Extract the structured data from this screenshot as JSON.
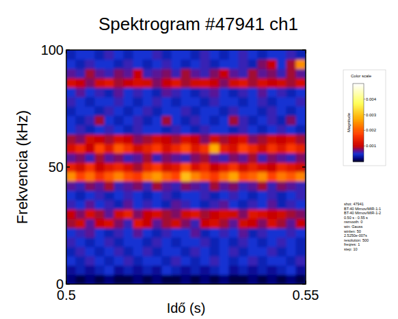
{
  "chart_data": {
    "type": "heatmap",
    "title": "Spektrogram #47941 ch1",
    "xlabel": "Idő (s)",
    "ylabel": "Frekvencia (kHz)",
    "xlim": [
      0.5,
      0.55
    ],
    "ylim": [
      0,
      100
    ],
    "xticks": [
      0.5,
      0.55
    ],
    "yticks": [
      0,
      50,
      100
    ],
    "x": [
      0.501,
      0.503,
      0.505,
      0.507,
      0.509,
      0.511,
      0.513,
      0.515,
      0.517,
      0.519,
      0.521,
      0.523,
      0.525,
      0.527,
      0.529,
      0.531,
      0.533,
      0.535,
      0.537,
      0.539,
      0.541,
      0.543,
      0.545,
      0.547,
      0.549
    ],
    "y": [
      2,
      6,
      10,
      14,
      18,
      22,
      26,
      30,
      34,
      38,
      42,
      46,
      50,
      54,
      58,
      62,
      66,
      70,
      74,
      78,
      82,
      86,
      90,
      94,
      98
    ],
    "cells": [
      [
        0.0002,
        0.0001,
        0.0002,
        0.0001,
        0.0002,
        0.0001,
        0.0001,
        0.0002,
        0.0001,
        0.0002,
        0.0001,
        0.0001,
        0.0002,
        0.0001,
        0.0002,
        0.0001,
        0.0002,
        0.0001,
        0.0001,
        0.0002,
        0.0001,
        0.0002,
        0.0001,
        0.0002,
        0.0001
      ],
      [
        0.0003,
        0.0004,
        0.0003,
        0.0004,
        0.0005,
        0.0003,
        0.0004,
        0.0003,
        0.0004,
        0.0003,
        0.0005,
        0.0004,
        0.0003,
        0.0004,
        0.0003,
        0.0004,
        0.0005,
        0.0003,
        0.0004,
        0.0003,
        0.0004,
        0.0003,
        0.0004,
        0.0005,
        0.0003
      ],
      [
        0.0005,
        0.0004,
        0.0006,
        0.0005,
        0.0004,
        0.0005,
        0.0006,
        0.0004,
        0.0005,
        0.0005,
        0.0004,
        0.0006,
        0.0005,
        0.0004,
        0.0005,
        0.0006,
        0.0005,
        0.0004,
        0.0005,
        0.0006,
        0.0004,
        0.0005,
        0.0005,
        0.0004,
        0.0006
      ],
      [
        0.0004,
        0.0006,
        0.0005,
        0.0004,
        0.0005,
        0.0006,
        0.0004,
        0.0005,
        0.0006,
        0.0004,
        0.0005,
        0.0005,
        0.0004,
        0.0006,
        0.0005,
        0.0004,
        0.0005,
        0.0006,
        0.0004,
        0.0005,
        0.0005,
        0.0006,
        0.0004,
        0.0005,
        0.0004
      ],
      [
        0.0006,
        0.0005,
        0.0004,
        0.0005,
        0.0006,
        0.0004,
        0.0005,
        0.0005,
        0.0004,
        0.0006,
        0.0005,
        0.0004,
        0.0005,
        0.0005,
        0.0006,
        0.0004,
        0.0005,
        0.0004,
        0.0006,
        0.0005,
        0.0004,
        0.0005,
        0.0006,
        0.0005,
        0.0004
      ],
      [
        0.0005,
        0.0006,
        0.0007,
        0.0005,
        0.0004,
        0.0006,
        0.0005,
        0.0007,
        0.0005,
        0.0004,
        0.0006,
        0.0005,
        0.0005,
        0.0007,
        0.0004,
        0.0005,
        0.0006,
        0.0005,
        0.0007,
        0.0004,
        0.0006,
        0.0005,
        0.0005,
        0.0006,
        0.0005
      ],
      [
        0.0009,
        0.0011,
        0.0007,
        0.001,
        0.0012,
        0.0008,
        0.0006,
        0.0013,
        0.001,
        0.0007,
        0.0009,
        0.0011,
        0.0008,
        0.0006,
        0.001,
        0.0012,
        0.0009,
        0.0007,
        0.0011,
        0.001,
        0.0008,
        0.0012,
        0.0009,
        0.0007,
        0.001
      ],
      [
        0.001,
        0.0008,
        0.0012,
        0.0009,
        0.0007,
        0.0011,
        0.0014,
        0.0008,
        0.001,
        0.0012,
        0.0009,
        0.0008,
        0.0011,
        0.0013,
        0.0009,
        0.001,
        0.0012,
        0.0011,
        0.0008,
        0.0013,
        0.0012,
        0.001,
        0.0011,
        0.0009,
        0.0008
      ],
      [
        0.0006,
        0.0005,
        0.0007,
        0.0005,
        0.0006,
        0.0004,
        0.0007,
        0.0005,
        0.0006,
        0.0005,
        0.0004,
        0.0007,
        0.0006,
        0.0005,
        0.0004,
        0.0006,
        0.0007,
        0.0005,
        0.0004,
        0.0006,
        0.0005,
        0.0007,
        0.0004,
        0.0006,
        0.0005
      ],
      [
        0.0005,
        0.0004,
        0.0005,
        0.0006,
        0.0004,
        0.0005,
        0.0006,
        0.0005,
        0.0004,
        0.0005,
        0.0006,
        0.0004,
        0.0005,
        0.0005,
        0.0006,
        0.0004,
        0.0005,
        0.0006,
        0.0005,
        0.0004,
        0.0005,
        0.0006,
        0.0004,
        0.0005,
        0.0006
      ],
      [
        0.0007,
        0.0006,
        0.0008,
        0.0007,
        0.0009,
        0.0006,
        0.0007,
        0.0008,
        0.0006,
        0.0009,
        0.0007,
        0.0006,
        0.0008,
        0.0007,
        0.0006,
        0.0009,
        0.0007,
        0.0008,
        0.0006,
        0.0007,
        0.0009,
        0.0006,
        0.0008,
        0.0007,
        0.0006
      ],
      [
        0.0025,
        0.0018,
        0.0022,
        0.0016,
        0.002,
        0.0024,
        0.0019,
        0.0017,
        0.0023,
        0.0026,
        0.0021,
        0.0018,
        0.003,
        0.0024,
        0.002,
        0.0017,
        0.0022,
        0.0027,
        0.0019,
        0.0021,
        0.0025,
        0.0018,
        0.0023,
        0.002,
        0.0024
      ],
      [
        0.0014,
        0.0011,
        0.0016,
        0.001,
        0.0013,
        0.0015,
        0.0012,
        0.0009,
        0.0014,
        0.0017,
        0.0011,
        0.0013,
        0.0019,
        0.0012,
        0.0015,
        0.001,
        0.0013,
        0.0016,
        0.0011,
        0.0014,
        0.0012,
        0.001,
        0.0015,
        0.0013,
        0.0011
      ],
      [
        0.0007,
        0.0008,
        0.0006,
        0.0009,
        0.0007,
        0.0008,
        0.0006,
        0.0007,
        0.0009,
        0.0006,
        0.0008,
        0.0007,
        0.0006,
        0.0008,
        0.0009,
        0.0007,
        0.0006,
        0.0008,
        0.0007,
        0.0009,
        0.0006,
        0.0008,
        0.0007,
        0.0006,
        0.0008
      ],
      [
        0.0012,
        0.0015,
        0.001,
        0.0018,
        0.0013,
        0.002,
        0.0016,
        0.0011,
        0.0014,
        0.0017,
        0.0012,
        0.0015,
        0.0019,
        0.0013,
        0.0016,
        0.0028,
        0.0014,
        0.0012,
        0.0018,
        0.0015,
        0.0011,
        0.0016,
        0.0013,
        0.0017,
        0.0014
      ],
      [
        0.0009,
        0.0008,
        0.0011,
        0.001,
        0.0009,
        0.0012,
        0.001,
        0.0008,
        0.0009,
        0.0011,
        0.001,
        0.0009,
        0.0012,
        0.001,
        0.0008,
        0.0011,
        0.0009,
        0.001,
        0.0012,
        0.0008,
        0.0009,
        0.0011,
        0.001,
        0.0012,
        0.0009
      ],
      [
        0.0005,
        0.0006,
        0.0004,
        0.0005,
        0.0006,
        0.0005,
        0.0004,
        0.0006,
        0.0005,
        0.0005,
        0.0004,
        0.0006,
        0.0005,
        0.0004,
        0.0006,
        0.0005,
        0.0005,
        0.0004,
        0.0006,
        0.0005,
        0.0004,
        0.0005,
        0.0006,
        0.0005,
        0.0004
      ],
      [
        0.0005,
        0.0004,
        0.0006,
        0.0009,
        0.0005,
        0.0004,
        0.0005,
        0.0006,
        0.0004,
        0.0005,
        0.0009,
        0.0005,
        0.0004,
        0.0006,
        0.0005,
        0.0004,
        0.0005,
        0.0009,
        0.0006,
        0.0004,
        0.0005,
        0.0006,
        0.0004,
        0.0008,
        0.0005
      ],
      [
        0.0004,
        0.0005,
        0.0005,
        0.0004,
        0.0006,
        0.0005,
        0.0004,
        0.0005,
        0.0006,
        0.0004,
        0.0005,
        0.0005,
        0.0006,
        0.0004,
        0.0005,
        0.0005,
        0.0004,
        0.0006,
        0.0005,
        0.0005,
        0.0004,
        0.0006,
        0.0005,
        0.0004,
        0.0005
      ],
      [
        0.0006,
        0.0005,
        0.0004,
        0.0005,
        0.0005,
        0.0006,
        0.0005,
        0.0004,
        0.0005,
        0.0006,
        0.0005,
        0.0004,
        0.0005,
        0.0005,
        0.0004,
        0.0006,
        0.0005,
        0.0005,
        0.0004,
        0.0005,
        0.0006,
        0.0004,
        0.0005,
        0.0005,
        0.0006
      ],
      [
        0.0005,
        0.0007,
        0.0005,
        0.0006,
        0.0004,
        0.0007,
        0.0005,
        0.0006,
        0.0005,
        0.0004,
        0.0007,
        0.0006,
        0.0005,
        0.0004,
        0.0006,
        0.0007,
        0.0005,
        0.0004,
        0.0006,
        0.0005,
        0.0007,
        0.0005,
        0.0006,
        0.0004,
        0.0005
      ],
      [
        0.0012,
        0.001,
        0.0008,
        0.0011,
        0.0013,
        0.0009,
        0.001,
        0.0012,
        0.0011,
        0.0008,
        0.001,
        0.0013,
        0.0009,
        0.0011,
        0.0012,
        0.001,
        0.0008,
        0.0011,
        0.0013,
        0.0009,
        0.0012,
        0.001,
        0.0011,
        0.0009,
        0.0012
      ],
      [
        0.0007,
        0.0006,
        0.0009,
        0.0007,
        0.0006,
        0.0008,
        0.0007,
        0.001,
        0.0006,
        0.0007,
        0.0008,
        0.0006,
        0.0009,
        0.0007,
        0.0006,
        0.0008,
        0.001,
        0.0007,
        0.0006,
        0.0009,
        0.0007,
        0.0008,
        0.0006,
        0.0009,
        0.0007
      ],
      [
        0.0005,
        0.0004,
        0.0006,
        0.0005,
        0.0005,
        0.0004,
        0.0006,
        0.0005,
        0.0004,
        0.0005,
        0.0006,
        0.0005,
        0.0004,
        0.0005,
        0.0006,
        0.0004,
        0.0005,
        0.0005,
        0.0006,
        0.0004,
        0.0008,
        0.001,
        0.0005,
        0.0009,
        0.0025
      ],
      [
        0.0004,
        0.0005,
        0.0005,
        0.0004,
        0.0006,
        0.0005,
        0.0004,
        0.0005,
        0.0005,
        0.0006,
        0.0004,
        0.0005,
        0.0005,
        0.0004,
        0.0006,
        0.0005,
        0.0004,
        0.0005,
        0.0006,
        0.0005,
        0.0004,
        0.0005,
        0.0005,
        0.0006,
        0.0004
      ]
    ],
    "colorbar": {
      "title": "Color scale",
      "label": "Magnitude",
      "range": [
        0,
        0.005
      ],
      "ticks": [
        0.001,
        0.002,
        0.003,
        0.004
      ]
    },
    "annotations": [
      "shot: 47941",
      "BT-40 Mirnov/MIR-1-1",
      "BT-40 Mirnov/MIR-1-2",
      "0.50 s - 0.55 s",
      "nsmooth: 0",
      "win: Gauss",
      "winlen: 50",
      "2.5250e-007s",
      "resolution: 500",
      "freqres: 1",
      "step: 10"
    ]
  }
}
